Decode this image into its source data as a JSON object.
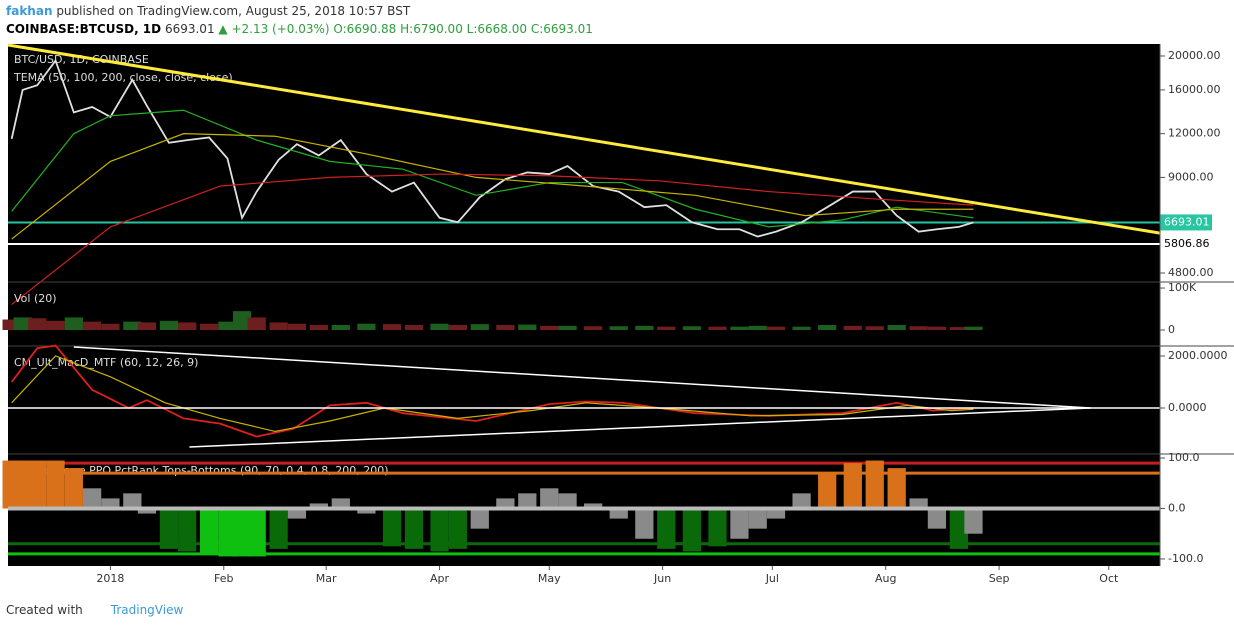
{
  "header": {
    "author": "fakhan",
    "published": "published on TradingView.com, August 25, 2018 10:57 BST",
    "symbol": "COINBASE:BTCUSD, 1D",
    "last": "6693.01",
    "change": "▲ +2.13 (+0.03%)",
    "ohlc": [
      "O:6690.88",
      "H:6790.00",
      "L:6668.00",
      "C:6693.01"
    ]
  },
  "footer": {
    "created": "Created with",
    "brand": "TradingView"
  },
  "chart_data": [
    {
      "type": "line",
      "title": "BTC/USD, 1D, COINBASE",
      "subtitle": "TEMA (50, 100, 200, close, close, close)",
      "log_scale": true,
      "xlim": [
        -28,
        287
      ],
      "ylim": [
        4524,
        21640
      ],
      "yticks": [
        {
          "value": 20000,
          "label": "20000.00"
        },
        {
          "value": 16000,
          "label": "16000.00"
        },
        {
          "value": 12000,
          "label": "12000.00"
        },
        {
          "value": 9000,
          "label": "9000.00"
        },
        {
          "value": 4800,
          "label": "4800.00"
        }
      ],
      "series": [
        {
          "color": "#e0e0e0",
          "x": [
            -27,
            -24,
            -20,
            -15,
            -10,
            -5,
            0,
            6,
            10,
            16,
            21,
            27,
            32,
            36,
            40,
            46,
            51,
            57,
            63,
            70,
            77,
            83,
            90,
            95,
            101,
            108,
            114,
            120,
            125,
            132,
            139,
            146,
            152,
            159,
            166,
            172,
            177,
            182,
            189,
            196,
            203,
            209,
            215,
            221,
            226,
            232,
            236
          ],
          "values": [
            11600,
            16000,
            16500,
            19400,
            13800,
            14300,
            13400,
            17100,
            14400,
            11300,
            11500,
            11700,
            10200,
            6900,
            8200,
            10100,
            11200,
            10400,
            11500,
            9200,
            8200,
            8700,
            6900,
            6700,
            7900,
            8900,
            9300,
            9200,
            9700,
            8500,
            8200,
            7400,
            7500,
            6700,
            6400,
            6400,
            6100,
            6300,
            6700,
            7400,
            8200,
            8200,
            7000,
            6300,
            6400,
            6500,
            6693.01
          ]
        },
        {
          "color": "#22b122",
          "x": [
            -27,
            -10,
            0,
            20,
            40,
            60,
            80,
            100,
            120,
            140,
            160,
            180,
            200,
            215,
            236
          ],
          "values": [
            7200,
            12000,
            13500,
            14000,
            11500,
            10000,
            9500,
            8000,
            8700,
            8700,
            7300,
            6500,
            6800,
            7400,
            6900
          ]
        },
        {
          "color": "#c8b400",
          "x": [
            -27,
            0,
            20,
            45,
            70,
            100,
            130,
            160,
            190,
            215,
            236
          ],
          "values": [
            6000,
            10000,
            12000,
            11800,
            10500,
            9000,
            8500,
            8000,
            7000,
            7300,
            7300
          ]
        },
        {
          "color": "#d02020",
          "x": [
            -27,
            0,
            30,
            60,
            90,
            120,
            150,
            180,
            210,
            236
          ],
          "values": [
            3900,
            6500,
            8500,
            9000,
            9200,
            9100,
            8800,
            8200,
            7800,
            7500
          ]
        }
      ],
      "trendlines": [
        {
          "color": "#ffeb3b",
          "x": [
            -28,
            287
          ],
          "values": [
            21500,
            6240
          ]
        }
      ],
      "levels": [
        {
          "value": 5806.86,
          "color": "#ffffff"
        },
        {
          "value": 6693.01,
          "color": "#26c6a0"
        }
      ]
    },
    {
      "type": "bar",
      "title": "Vol (20)",
      "xlim": [
        -28,
        287
      ],
      "ylim": [
        -35700,
        112000
      ],
      "yticks": [
        {
          "value": 100000,
          "label": "100K"
        },
        0
      ],
      "up_color": "#1e5e1e",
      "down_color": "#6e1e1e",
      "x": [
        -27,
        -24,
        -20,
        -15,
        -10,
        -5,
        0,
        6,
        10,
        16,
        21,
        27,
        32,
        36,
        40,
        46,
        51,
        57,
        63,
        70,
        77,
        83,
        90,
        95,
        101,
        108,
        114,
        120,
        125,
        132,
        139,
        146,
        152,
        159,
        166,
        172,
        177,
        182,
        189,
        196,
        203,
        209,
        215,
        221,
        226,
        232,
        236
      ],
      "values": [
        25000,
        30000,
        28000,
        22000,
        30000,
        20000,
        15000,
        20000,
        18000,
        22000,
        18000,
        15000,
        20000,
        45000,
        30000,
        18000,
        15000,
        12000,
        12000,
        15000,
        14000,
        12000,
        15000,
        12000,
        14000,
        12000,
        13000,
        10000,
        10000,
        9000,
        9000,
        10000,
        8000,
        9000,
        8000,
        8000,
        10000,
        8000,
        8000,
        12000,
        10000,
        9000,
        12000,
        9000,
        8000,
        7000,
        8000
      ]
    },
    {
      "type": "line",
      "title": "CM_Ult_MacD_MTF (60, 12, 26, 9)",
      "xlim": [
        -28,
        287
      ],
      "ylim": [
        -1692,
        2346
      ],
      "yticks": [
        {
          "value": 2000,
          "label": "2000.0000"
        },
        {
          "value": 0,
          "label": "0.0000"
        }
      ],
      "series": [
        {
          "color": "#e02020",
          "x": [
            -27,
            -20,
            -15,
            -5,
            5,
            10,
            20,
            30,
            40,
            50,
            60,
            70,
            80,
            100,
            120,
            130,
            140,
            160,
            180,
            200,
            215,
            225,
            236
          ],
          "values": [
            1000,
            2300,
            2400,
            700,
            0,
            300,
            -400,
            -600,
            -1100,
            -800,
            100,
            200,
            -200,
            -500,
            150,
            250,
            200,
            -200,
            -300,
            -200,
            200,
            -100,
            0
          ]
        },
        {
          "color": "#c8b400",
          "x": [
            -27,
            -15,
            0,
            15,
            30,
            45,
            60,
            75,
            95,
            115,
            130,
            150,
            175,
            200,
            218,
            230,
            236
          ],
          "values": [
            200,
            2000,
            1200,
            200,
            -400,
            -900,
            -500,
            0,
            -400,
            -100,
            200,
            0,
            -300,
            -250,
            100,
            -100,
            -50
          ]
        }
      ],
      "trendlines": [
        {
          "color": "#ffffff",
          "x": [
            -10,
            268
          ],
          "values": [
            2346,
            0
          ]
        },
        {
          "color": "#ffffff",
          "x": [
            21.6,
            268
          ],
          "values": [
            -1500,
            0
          ]
        }
      ]
    },
    {
      "type": "bar",
      "title": "CM_Laguerre PPO PctRank Tops-Bottoms (90, 70, 0.4, 0.8, 200, 200)",
      "xlim": [
        -28,
        287
      ],
      "ylim": [
        -112,
        106
      ],
      "yticks": [
        {
          "value": 100,
          "label": "100.0"
        },
        {
          "value": 0,
          "label": "0.0"
        },
        {
          "value": -100,
          "label": "-100.0"
        }
      ],
      "levels": [
        {
          "value": 90,
          "color": "#c81e1e"
        },
        {
          "value": 70,
          "color": "#d9701a"
        },
        {
          "value": -70,
          "color": "#0a6a0a"
        },
        {
          "value": -90,
          "color": "#10c010"
        }
      ],
      "color": "#8a8a8a",
      "x": [
        -27,
        -24,
        -20,
        -15,
        -10,
        -5,
        0,
        6,
        10,
        16,
        21,
        27,
        32,
        36,
        40,
        46,
        51,
        57,
        63,
        70,
        77,
        83,
        90,
        95,
        101,
        108,
        114,
        120,
        125,
        132,
        139,
        146,
        152,
        159,
        166,
        172,
        177,
        182,
        189,
        196,
        203,
        209,
        215,
        221,
        226,
        232,
        236
      ],
      "values": [
        95,
        95,
        95,
        95,
        80,
        40,
        20,
        30,
        -10,
        -80,
        -85,
        -90,
        -95,
        -95,
        -95,
        -80,
        -20,
        10,
        20,
        -10,
        -75,
        -80,
        -85,
        -80,
        -40,
        20,
        30,
        40,
        30,
        10,
        -20,
        -60,
        -80,
        -85,
        -75,
        -60,
        -40,
        -20,
        30,
        70,
        90,
        95,
        80,
        20,
        -40,
        -80,
        -50
      ],
      "xticks": [
        {
          "value": 0,
          "label": "2018"
        },
        {
          "value": 31,
          "label": "Feb"
        },
        {
          "value": 59,
          "label": "Mar"
        },
        {
          "value": 90,
          "label": "Apr"
        },
        {
          "value": 120,
          "label": "May"
        },
        {
          "value": 151,
          "label": "Jun"
        },
        {
          "value": 181,
          "label": "Jul"
        },
        {
          "value": 212,
          "label": "Aug"
        },
        {
          "value": 243,
          "label": "Sep"
        },
        {
          "value": 273,
          "label": "Oct"
        }
      ]
    }
  ]
}
